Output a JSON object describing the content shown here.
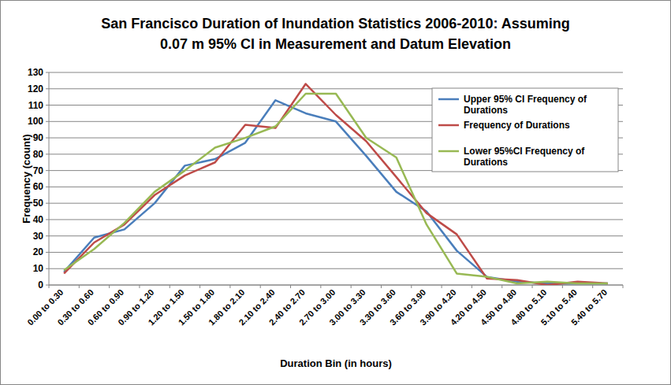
{
  "chart_data": {
    "type": "line",
    "title": "San Francisco Duration of Inundation Statistics 2006-2010: Assuming 0.07 m 95% CI in Measurement and Datum Elevation",
    "x_label": "Duration Bin (in hours)",
    "y_label": "Frequency (count)",
    "categories": [
      "0.00 to 0.30",
      "0.30 to 0.60",
      "0.60 to 0.90",
      "0.90 to 1.20",
      "1.20 to 1.50",
      "1.50 to 1.80",
      "1.80 to 2.10",
      "2.10 to 2.40",
      "2.40 to 2.70",
      "2.70 to 3.00",
      "3.00 to 3.30",
      "3.30 to 3.60",
      "3.60 to 3.90",
      "3.90 to 4.20",
      "4.20 to 4.50",
      "4.50 to 4.80",
      "4.80 to 5.10",
      "5.10 to 5.40",
      "5.40 to 5.70"
    ],
    "series": [
      {
        "name": "Upper 95% CI Frequency of Durations",
        "color": "#4a7ebb",
        "values": [
          8,
          29,
          34,
          50,
          73,
          77,
          87,
          113,
          105,
          100,
          79,
          57,
          45,
          21,
          5,
          2,
          1,
          1,
          1
        ]
      },
      {
        "name": "Frequency of Durations",
        "color": "#be4b48",
        "values": [
          7,
          26,
          37,
          55,
          67,
          75,
          98,
          96,
          123,
          104,
          88,
          66,
          44,
          31,
          4,
          3,
          0,
          2,
          1
        ]
      },
      {
        "name": "Lower 95%CI Frequency of Durations",
        "color": "#98b954",
        "values": [
          9,
          22,
          38,
          57,
          70,
          84,
          90,
          97,
          117,
          117,
          90,
          78,
          37,
          7,
          5,
          1,
          2,
          1,
          1
        ]
      }
    ],
    "ylim": [
      0,
      130
    ],
    "yticks": [
      0,
      10,
      20,
      30,
      40,
      50,
      60,
      70,
      80,
      90,
      100,
      110,
      120,
      130
    ],
    "grid": true,
    "legend": "top-right"
  }
}
